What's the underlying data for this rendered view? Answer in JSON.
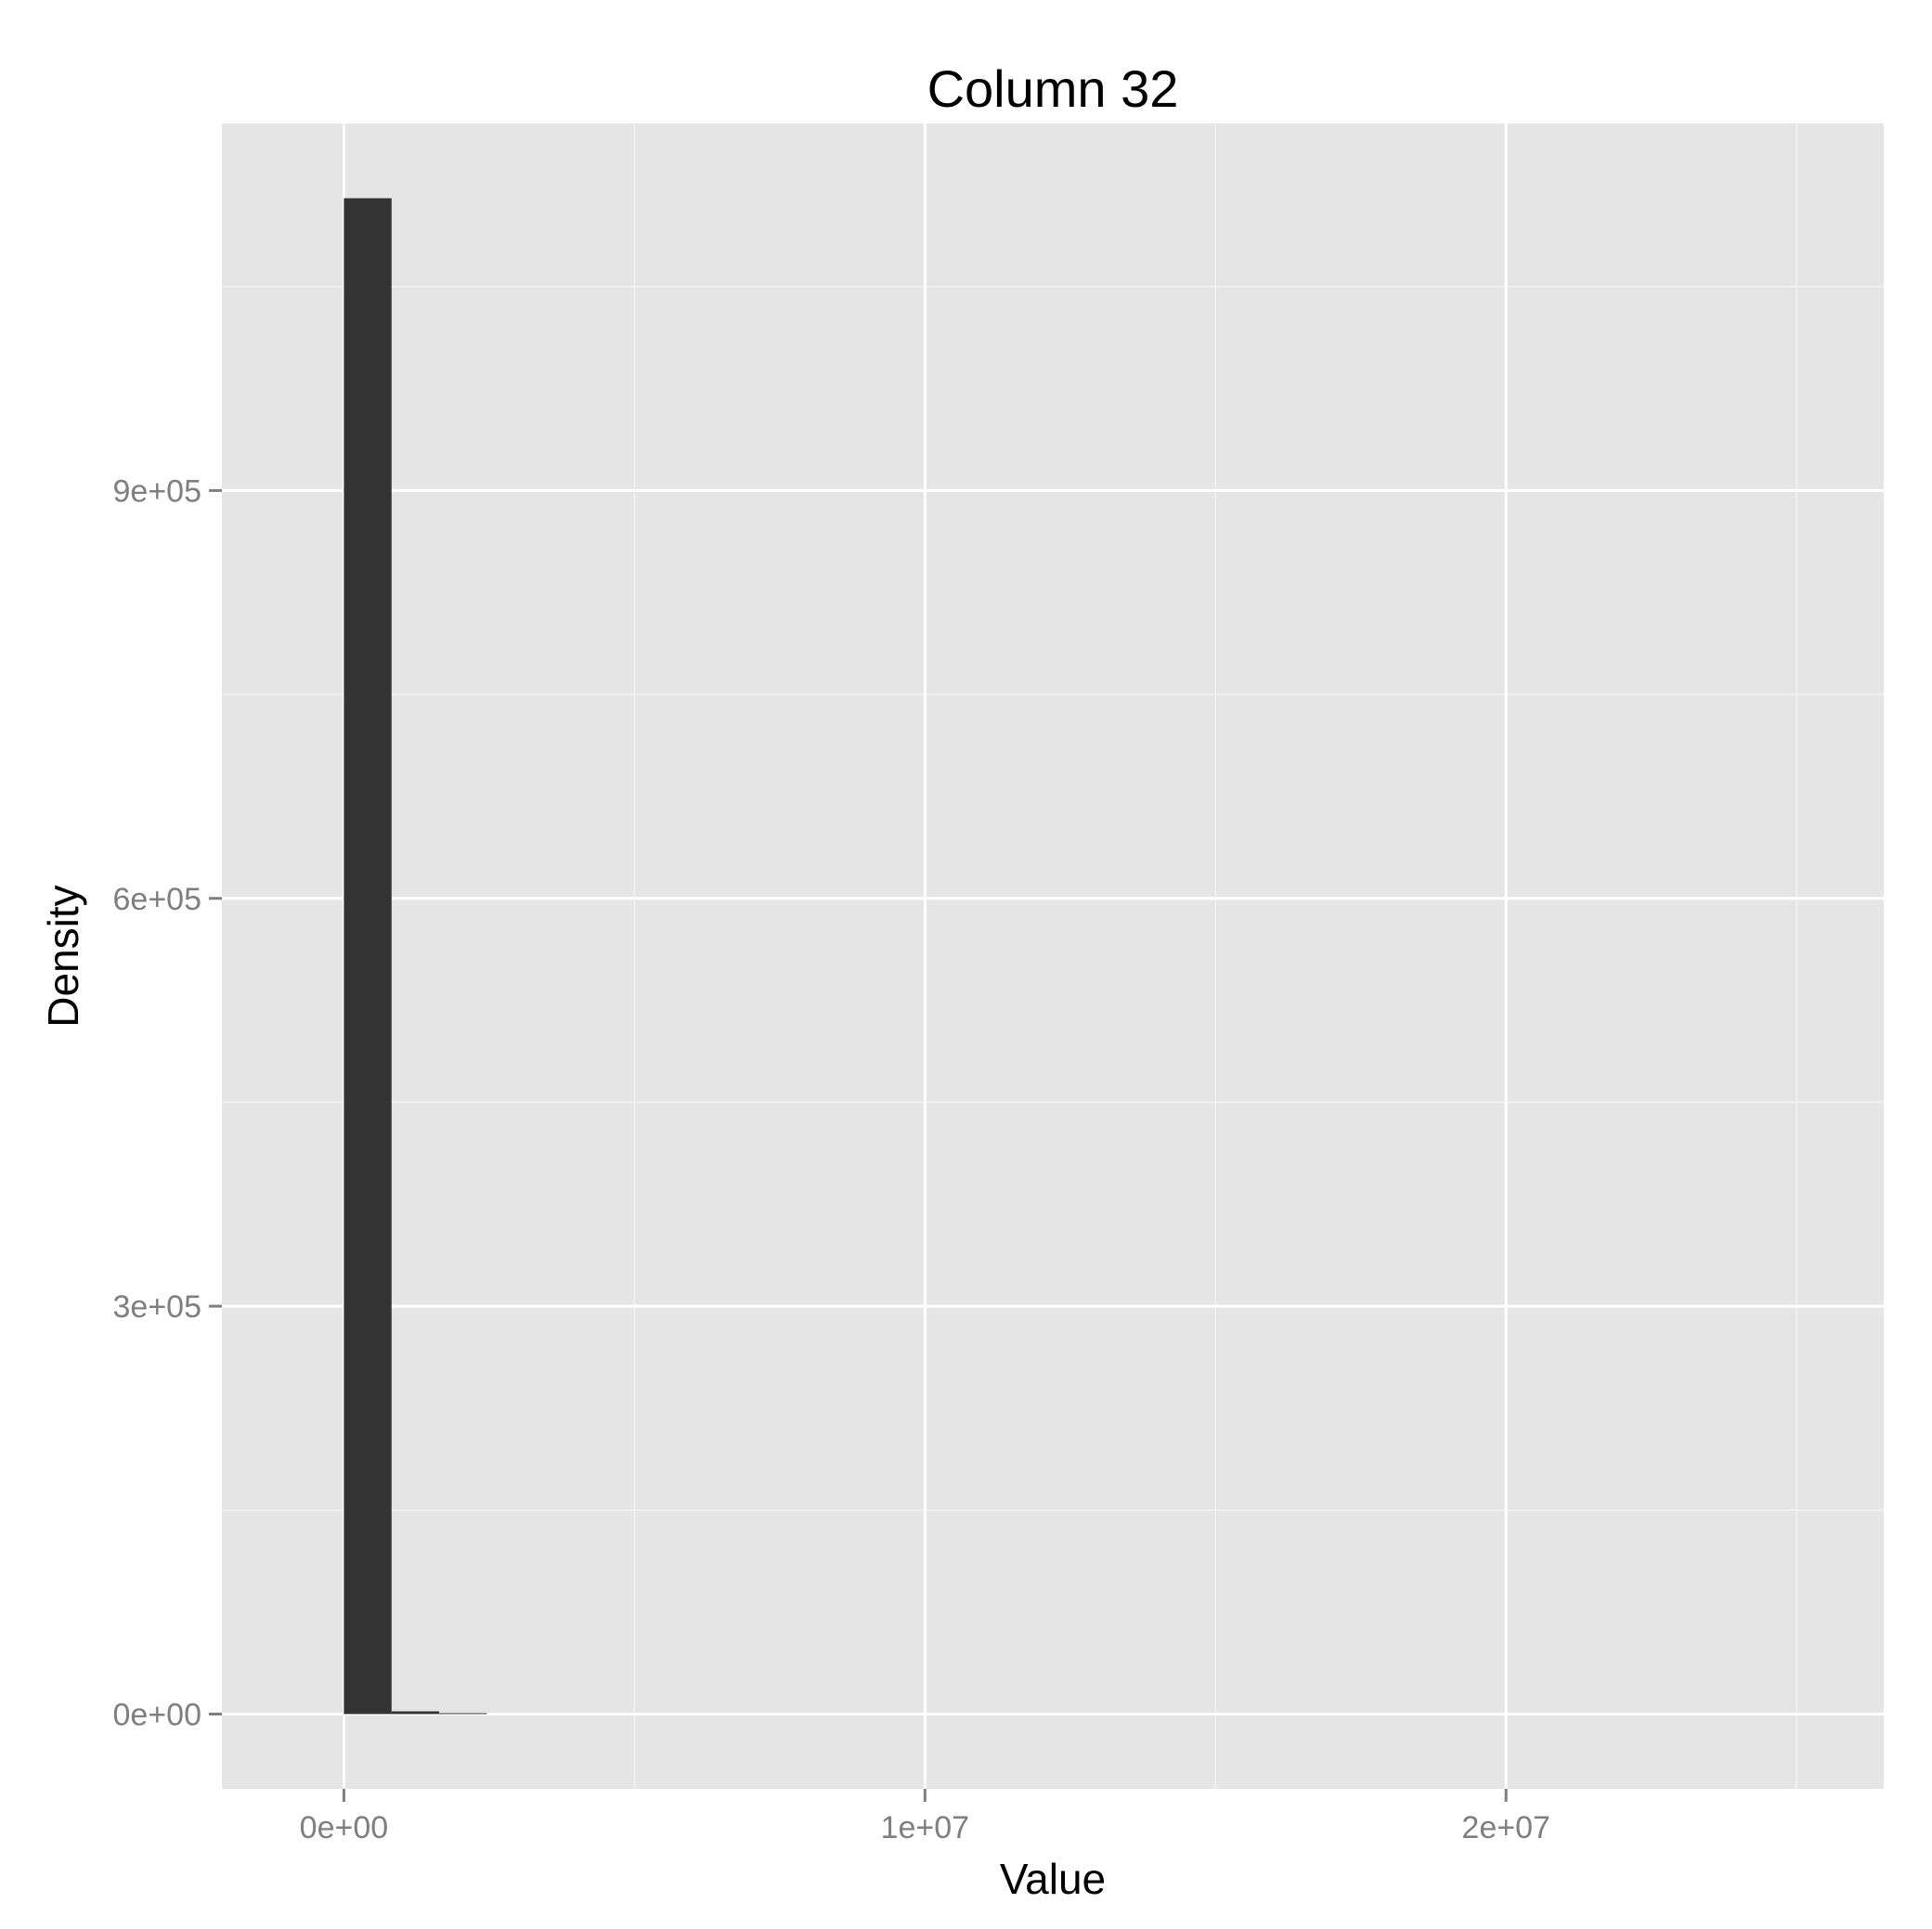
{
  "chart_data": {
    "type": "bar",
    "title": "Column 32",
    "xlabel": "Value",
    "ylabel": "Density",
    "xlim": [
      -2100000,
      26500000
    ],
    "ylim": [
      -55000,
      1170000
    ],
    "x_ticks": [
      {
        "value": 0,
        "label": "0e+00"
      },
      {
        "value": 10000000,
        "label": "1e+07"
      },
      {
        "value": 20000000,
        "label": "2e+07"
      }
    ],
    "x_minor_ticks": [
      5000000,
      15000000,
      25000000
    ],
    "y_ticks": [
      {
        "value": 0,
        "label": "0e+00"
      },
      {
        "value": 300000,
        "label": "3e+05"
      },
      {
        "value": 600000,
        "label": "6e+05"
      },
      {
        "value": 900000,
        "label": "9e+05"
      }
    ],
    "y_minor_ticks": [
      150000,
      450000,
      750000,
      1050000
    ],
    "bins": [
      {
        "x0": 0,
        "x1": 820000,
        "value": 1115000
      },
      {
        "x0": 820000,
        "x1": 1640000,
        "value": 2000
      },
      {
        "x0": 1640000,
        "x1": 2460000,
        "value": 400
      }
    ],
    "grid": true,
    "colors": {
      "panel_background": "#e5e5e5",
      "grid_major": "#ffffff",
      "grid_minor": "#f2f2f2",
      "bar_fill": "#333333",
      "tick_label": "#7f7f7f",
      "axis_title": "#000000"
    }
  }
}
